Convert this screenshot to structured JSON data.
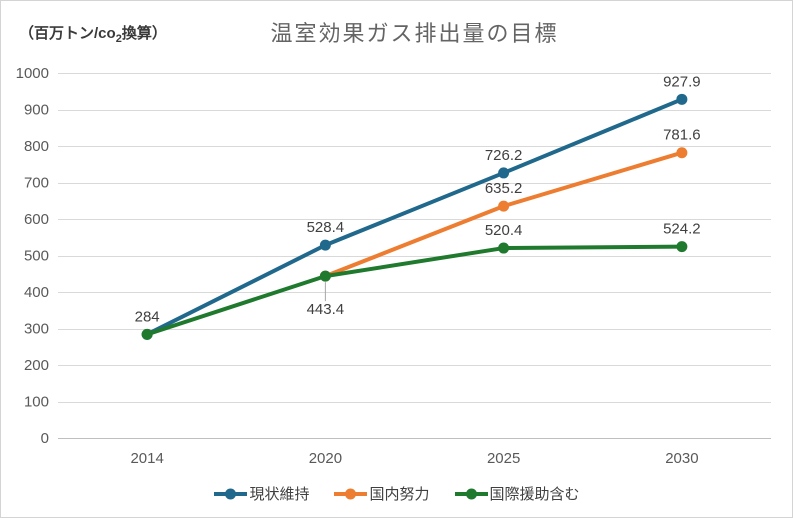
{
  "chart_data": {
    "type": "line",
    "title": "温室効果ガス排出量の目標",
    "unit_label": {
      "prefix": "（百万トン/co",
      "subscript": "2",
      "suffix": "換算）"
    },
    "categories": [
      "2014",
      "2020",
      "2025",
      "2030"
    ],
    "ylim": [
      0,
      1000
    ],
    "ytick_step": 100,
    "grid": true,
    "legend_position": "bottom",
    "grid_color": "#d9d9d9",
    "axis_color": "#bfbfbf",
    "leader_color": "#a6a6a6",
    "tick_text_color": "#595959",
    "label_text_color": "#404040",
    "series": [
      {
        "name": "現状維持",
        "color": "#21698c",
        "values": [
          284,
          528.4,
          726.2,
          927.9
        ],
        "point_labels": [
          "284",
          "528.4",
          "726.2",
          "927.9"
        ],
        "label_positions": [
          "above",
          "above",
          "above",
          "above"
        ]
      },
      {
        "name": "国内努力",
        "color": "#ed7d31",
        "values": [
          null,
          443.4,
          635.2,
          781.6
        ],
        "point_labels": [
          null,
          null,
          "635.2",
          "781.6"
        ],
        "label_positions": [
          null,
          null,
          "above",
          "above"
        ]
      },
      {
        "name": "国際援助含む",
        "color": "#1f7a2e",
        "values": [
          284,
          443.4,
          520.4,
          524.2
        ],
        "point_labels": [
          null,
          "443.4",
          "520.4",
          "524.2"
        ],
        "label_positions": [
          null,
          "below-leader",
          "above",
          "above"
        ]
      }
    ]
  }
}
